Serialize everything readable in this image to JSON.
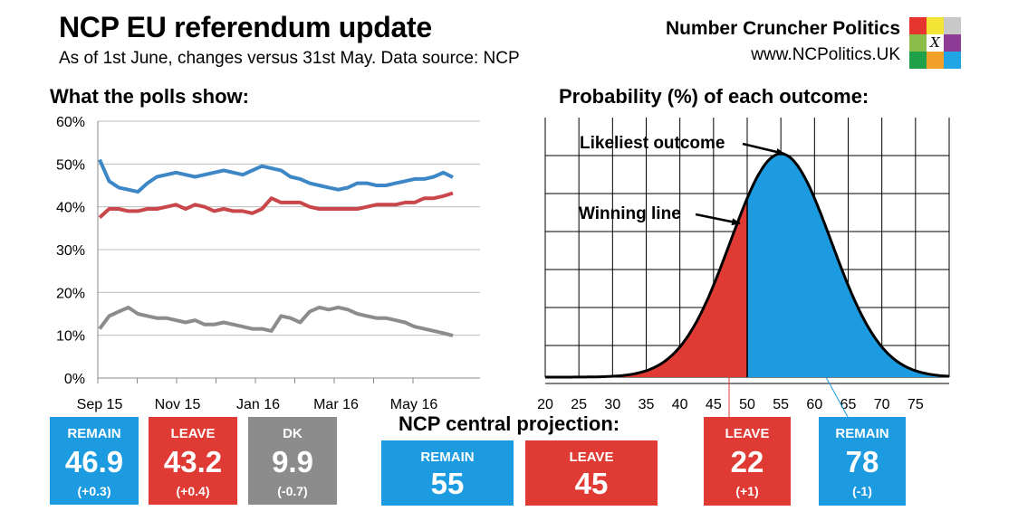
{
  "header": {
    "title": "NCP EU referendum update",
    "subtitle": "As of 1st June, changes versus 31st May. Data source: NCP",
    "brand_name": "Number Cruncher Politics",
    "brand_url": "www.NCPolitics.UK",
    "logo_letter": "X"
  },
  "left_chart_title": "What the polls show:",
  "right_chart_title": "Probability (%) of each outcome:",
  "colors": {
    "remain": "#3d87c6",
    "leave": "#c9474a",
    "dk": "#8c8c8c",
    "remain_box": "#1c9be0",
    "leave_box": "#e03a34",
    "dk_box": "#8c8c8c"
  },
  "chart_data": [
    {
      "type": "line",
      "title": "What the polls show:",
      "x_tick_labels": [
        "Sep 15",
        "Nov 15",
        "Jan 16",
        "Mar 16",
        "May 16"
      ],
      "x_range": [
        "2015-09-01",
        "2016-06-01"
      ],
      "y_tick_labels": [
        "0%",
        "10%",
        "20%",
        "30%",
        "40%",
        "50%",
        "60%"
      ],
      "ylim": [
        0,
        60
      ],
      "grid": true,
      "series": [
        {
          "name": "Remain",
          "color": "#3d87c6",
          "values": [
            51,
            46,
            44.5,
            44,
            43.5,
            45.5,
            47,
            47.5,
            48,
            47.5,
            47,
            47.5,
            48,
            48.5,
            48,
            47.5,
            48.5,
            49.5,
            49,
            48.5,
            47,
            46.5,
            45.5,
            45,
            44.5,
            44,
            44.5,
            45.5,
            45.5,
            45,
            45,
            45.5,
            46,
            46.5,
            46.5,
            47,
            48,
            46.9
          ]
        },
        {
          "name": "Leave",
          "color": "#c9474a",
          "values": [
            37.5,
            39.5,
            39.5,
            39,
            39,
            39.5,
            39.5,
            40,
            40.5,
            39.5,
            40.5,
            40,
            39,
            39.5,
            39,
            39,
            38.5,
            39.5,
            42,
            41,
            41,
            41,
            40,
            39.5,
            39.5,
            39.5,
            39.5,
            39.5,
            40,
            40.5,
            40.5,
            40.5,
            41,
            41,
            42,
            42,
            42.5,
            43.2
          ]
        },
        {
          "name": "DK",
          "color": "#8c8c8c",
          "values": [
            11.5,
            14.5,
            15.5,
            16.5,
            15,
            14.5,
            14,
            14,
            13.5,
            13,
            13.5,
            12.5,
            12.5,
            13,
            12.5,
            12,
            11.5,
            11.5,
            11,
            14.5,
            14,
            13,
            15.5,
            16.5,
            16,
            16.5,
            16,
            15,
            14.5,
            14,
            14,
            13.5,
            13,
            12,
            11.5,
            11,
            10.5,
            9.9
          ]
        }
      ]
    },
    {
      "type": "area",
      "title": "Probability (%) of each outcome:",
      "distribution": "normal",
      "mean": 55,
      "sd": 7.5,
      "threshold": 50,
      "x_tick_labels": [
        "20",
        "25",
        "30",
        "35",
        "40",
        "45",
        "50",
        "55",
        "60",
        "65",
        "70",
        "75"
      ],
      "xlim": [
        20,
        80
      ],
      "ylim": [
        0,
        1
      ],
      "grid": true,
      "regions": [
        {
          "name": "Leave",
          "range": [
            20,
            50
          ],
          "color": "#e03a34"
        },
        {
          "name": "Remain",
          "range": [
            50,
            80
          ],
          "color": "#1c9be0"
        }
      ],
      "annotations": [
        "Likeliest outcome",
        "Winning line"
      ]
    }
  ],
  "poll_boxes": [
    {
      "label": "REMAIN",
      "value": "46.9",
      "change": "(+0.3)"
    },
    {
      "label": "LEAVE",
      "value": "43.2",
      "change": "(+0.4)"
    },
    {
      "label": "DK",
      "value": "9.9",
      "change": "(-0.7)"
    }
  ],
  "projection": {
    "title": "NCP central projection:",
    "remain_label": "REMAIN",
    "remain_value": "55",
    "leave_label": "LEAVE",
    "leave_value": "45"
  },
  "probability_boxes": [
    {
      "label": "LEAVE",
      "value": "22",
      "change": "(+1)"
    },
    {
      "label": "REMAIN",
      "value": "78",
      "change": "(-1)"
    }
  ]
}
